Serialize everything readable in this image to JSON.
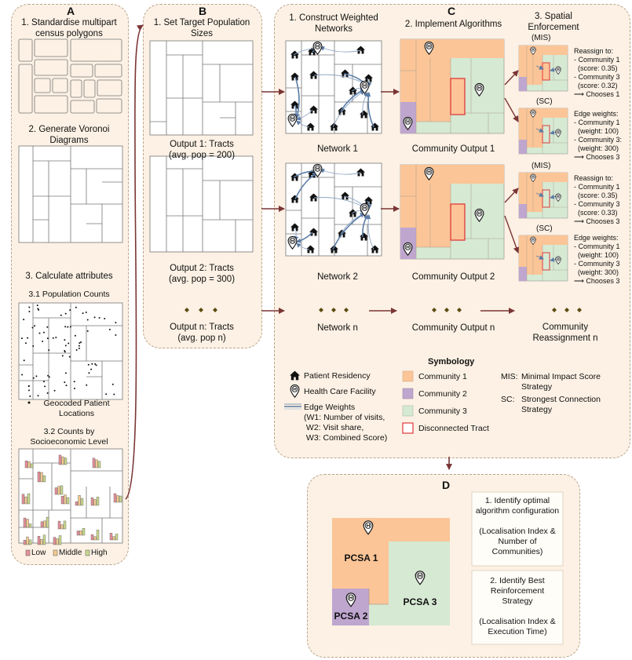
{
  "panelA": {
    "letter": "A",
    "step1": "1. Standardise multipart\ncensus polygons",
    "step2": "2. Generate Voronoi\nDiagrams",
    "step3": "3. Calculate attributes",
    "step31": "3.1 Population Counts",
    "dots_legend": "Geocoded Patient\nLocations",
    "step32": "3.2 Counts by\nSocioeconomic Level",
    "legend": [
      "Low",
      "Middle",
      "High"
    ]
  },
  "panelB": {
    "letter": "B",
    "title": "1. Set Target Population\nSizes",
    "output1": "Output 1: Tracts\n(avg. pop = 200)",
    "output2": "Output 2: Tracts\n(avg. pop = 300)",
    "outputn": "Output n: Tracts\n(avg. pop n)"
  },
  "panelC": {
    "letter": "C",
    "col1_title": "1. Construct Weighted\nNetworks",
    "col2_title": "2. Implement Algorithms",
    "col3_title": "3. Spatial\nEnforcement",
    "network1": "Network 1",
    "network2": "Network 2",
    "networkn": "Network n",
    "community1": "Community Output 1",
    "community2": "Community Output 2",
    "communityn": "Community Output n",
    "reassign_n": "Community\nReassignment n",
    "mis": "(MIS)",
    "sc": "(SC)",
    "note_mis_1": "Reassign to:\n- Community 1\n  (score: 0.35)\n- Community 3\n  (score: 0.32)\n⟶ Chooses 1",
    "note_sc_1": "Edge weights:\n- Community 1\n  (weight: 100)\n- Community 3:\n  (weight: 300)\n⟶ Chooses 3",
    "note_mis_2": "Reassign to:\n- Community 1\n  (score: 0.35)\n- Community 3\n  (score: 0.33)\n⟶ Chooses 3",
    "note_sc_2": "Edge weights:\n- Community 1\n  (weight: 100)\n- Community 3\n  (weight: 300)\n⟶ Chooses 3",
    "legend": {
      "patient": "Patient Residency",
      "facility": "Health Care Facility",
      "edge_title": "Edge Weights",
      "edge_items": "(W1: Number of visits,\n W2: Visit share,\n W3: Combined Score)",
      "symbology": "Symbology",
      "c1": "Community 1",
      "c2": "Community 2",
      "c3": "Community 3",
      "disc": "Disconnected Tract",
      "mis_key": "MIS:",
      "mis_val": "Minimal Impact Score\nStrategy",
      "sc_key": "SC:",
      "sc_val": "Strongest Connection\nStrategy"
    }
  },
  "panelD": {
    "letter": "D",
    "pcsa1": "PCSA 1",
    "pcsa2": "PCSA 2",
    "pcsa3": "PCSA 3",
    "box1": "1. Identify optimal\nalgorithm configuration\n\n(Localisation Index &\nNumber of\nCommunities)",
    "box2": "2. Identify Best\nReinforcement\nStrategy\n\n(Localisation Index &\nExecution Time)"
  },
  "colors": {
    "community1": "#fbc597",
    "community2": "#bfa6cf",
    "community3": "#d6e9d3",
    "disconnected": "#e0393a",
    "arrow": "#7b3535",
    "edge": "#5a7ba6",
    "panel": "#fcf1e4"
  },
  "icons": [
    "house-icon",
    "hospital-pin-icon",
    "diamond-ellipsis-icon"
  ]
}
